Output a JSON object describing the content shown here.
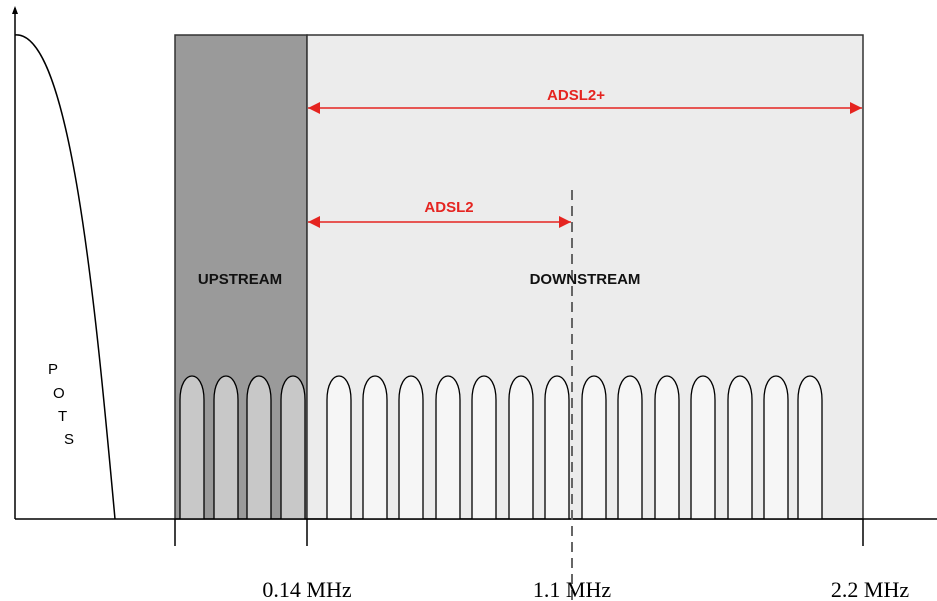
{
  "pots_letters": [
    "P",
    "O",
    "T",
    "S"
  ],
  "bands": {
    "upstream": "UPSTREAM",
    "downstream": "DOWNSTREAM"
  },
  "ranges": {
    "adsl2": "ADSL2",
    "adsl2plus": "ADSL2+"
  },
  "frequencies": [
    "0.14 MHz",
    "1.1 MHz",
    "2.2 MHz"
  ]
}
